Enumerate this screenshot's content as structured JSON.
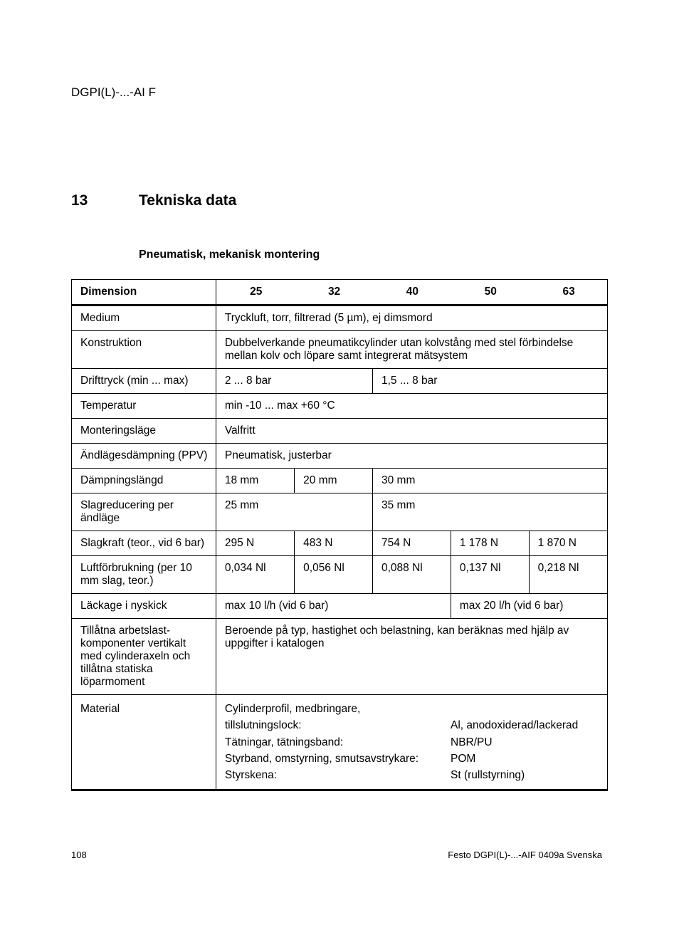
{
  "header": {
    "product_code": "DGPI(L)-...-AI F"
  },
  "section": {
    "number": "13",
    "title": "Tekniska data"
  },
  "subtitle": "Pneumatisk,  mekanisk montering",
  "table": {
    "header": {
      "dimension": "Dimension",
      "c25": "25",
      "c32": "32",
      "c40": "40",
      "c50": "50",
      "c63": "63"
    },
    "rows": {
      "medium_label": "Medium",
      "medium_val": "Tryckluft, torr, filtrerad (5 µm), ej dimsmord",
      "konstruktion_label": "Konstruktion",
      "konstruktion_val": "Dubbelverkande pneumatikcylinder utan kolvstång med stel förbindelse mellan kolv och löpare samt integrerat mätsystem",
      "drifttryck_label": "Drifttryck (min ... max)",
      "drifttryck_a": "2 ... 8 bar",
      "drifttryck_b": "1,5 ... 8 bar",
      "temperatur_label": "Temperatur",
      "temperatur_val": "min -10 ... max +60 °C",
      "montering_label": "Monteringsläge",
      "montering_val": "Valfritt",
      "andlages_label": "Ändlägesdämpning (PPV)",
      "andlages_val": "Pneumatisk, justerbar",
      "dampning_label": "Dämpningslängd",
      "dampning_25": "18 mm",
      "dampning_32": "20 mm",
      "dampning_rest": "30 mm",
      "slagred_label": "Slagreducering per ändläge",
      "slagred_a": "25 mm",
      "slagred_b": "35 mm",
      "slagkraft_label": "Slagkraft (teor., vid 6 bar)",
      "slagkraft_25": "295 N",
      "slagkraft_32": "483 N",
      "slagkraft_40": "754 N",
      "slagkraft_50": "1 178 N",
      "slagkraft_63": "1 870 N",
      "luft_label": "Luftförbrukning (per 10 mm slag, teor.)",
      "luft_25": "0,034 Nl",
      "luft_32": "0,056 Nl",
      "luft_40": "0,088 Nl",
      "luft_50": "0,137 Nl",
      "luft_63": "0,218 Nl",
      "lackage_label": "Läckage i nyskick",
      "lackage_a": "max 10 l/h (vid 6 bar)",
      "lackage_b": "max 20 l/h (vid 6 bar)",
      "tillatna_label": "Tillåtna arbetslast-komponenter vertikalt med cylinderaxeln och tillåtna statiska löparmoment",
      "tillatna_val": "Beroende på typ, hastighet och belastning, kan beräknas med hjälp av uppgifter i katalogen",
      "material_label": "Material",
      "material_l1": "Cylinderprofil, medbringare,",
      "material_l2": "tillslutningslock:",
      "material_l3": "Tätningar, tätningsband:",
      "material_l4": "Styrband, omstyrning, smutsavstrykare:",
      "material_l5": "Styrskena:",
      "material_r1": "Al, anodoxiderad/lackerad",
      "material_r2": "NBR/PU",
      "material_r3": "POM",
      "material_r4": "St (rullstyrning)"
    }
  },
  "footer": {
    "page": "108",
    "doc": "Festo DGPI(L)-...-AIF 0409a Svenska"
  }
}
